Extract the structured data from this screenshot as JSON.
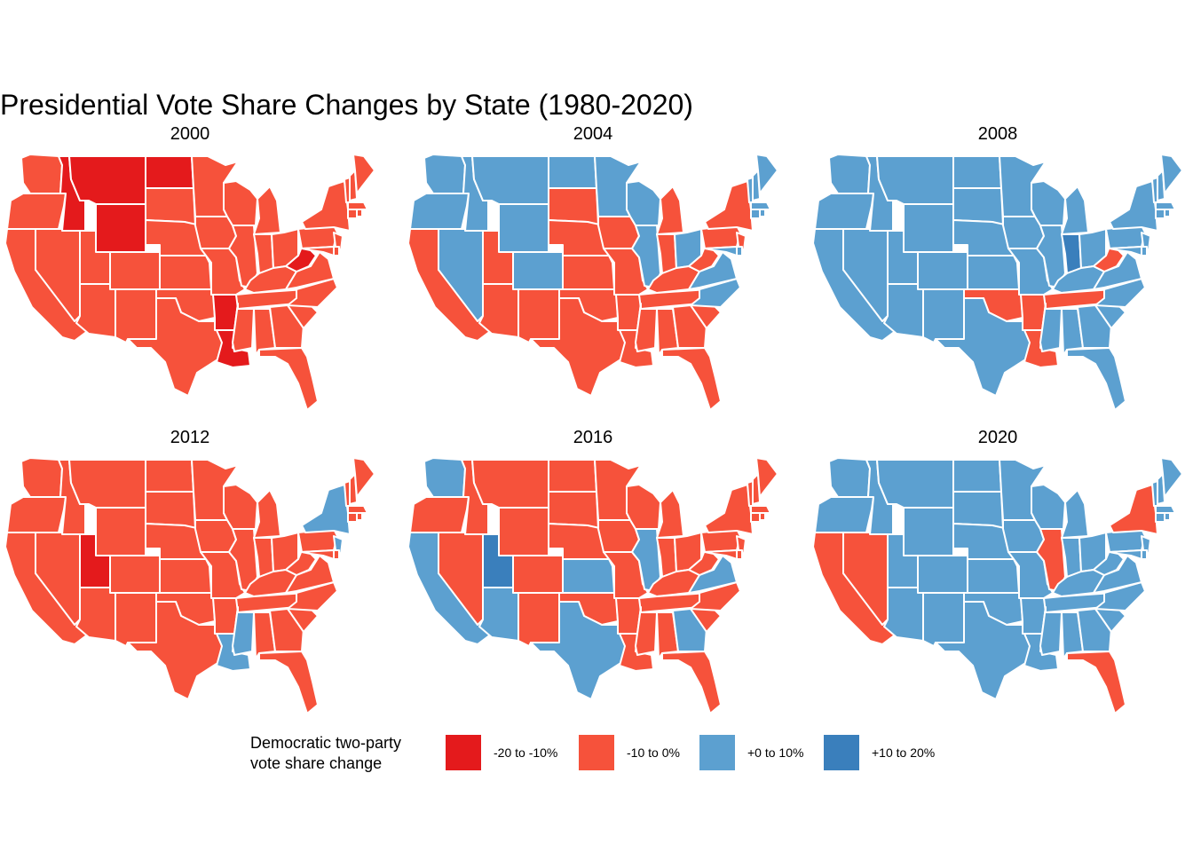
{
  "title": "Presidential Vote Share Changes by State (1980-2020)",
  "colors": {
    "cat1": "#e41a1c",
    "cat2": "#f6523b",
    "cat3": "#5ca0d0",
    "cat4": "#3a7fbc",
    "border": "#ffffff"
  },
  "legend": {
    "title_line1": "Democratic two-party",
    "title_line2": "vote share change",
    "items": [
      {
        "label": "-20 to -10%",
        "color": "#e41a1c"
      },
      {
        "label": "-10 to 0%",
        "color": "#f6523b"
      },
      {
        "label": "+0 to 10%",
        "color": "#5ca0d0"
      },
      {
        "label": "+10 to 20%",
        "color": "#3a7fbc"
      }
    ]
  },
  "panels": [
    {
      "year": "2000",
      "default": 2,
      "overrides": {
        "MT": 1,
        "ID": 1,
        "WY": 1,
        "ND": 1,
        "AR": 1,
        "LA": 1,
        "WV": 1
      }
    },
    {
      "year": "2004",
      "default": 3,
      "overrides": {
        "CA": 2,
        "UT": 2,
        "AZ": 2,
        "NM": 2,
        "TX": 2,
        "OK": 2,
        "KS": 2,
        "NE": 2,
        "SD": 2,
        "IA": 2,
        "MO": 2,
        "AR": 2,
        "LA": 2,
        "MS": 2,
        "AL": 2,
        "GA": 2,
        "FL": 2,
        "SC": 2,
        "TN": 2,
        "KY": 2,
        "IN": 2,
        "MI": 2,
        "PA": 2,
        "NY": 2,
        "NJ": 2,
        "WV": 2
      }
    },
    {
      "year": "2008",
      "default": 3,
      "overrides": {
        "OK": 2,
        "AR": 2,
        "LA": 2,
        "TN": 2,
        "WV": 2,
        "IN": 4
      }
    },
    {
      "year": "2012",
      "default": 2,
      "overrides": {
        "UT": 1,
        "MS": 3,
        "LA": 3,
        "NY": 3,
        "NJ": 3
      }
    },
    {
      "year": "2016",
      "default": 2,
      "overrides": {
        "WA": 3,
        "CA": 3,
        "AZ": 3,
        "TX": 3,
        "KS": 3,
        "IL": 3,
        "GA": 3,
        "VA": 3,
        "UT": 4
      }
    },
    {
      "year": "2020",
      "default": 3,
      "overrides": {
        "CA": 2,
        "NV": 2,
        "IL": 2,
        "FL": 2,
        "NY": 2
      }
    }
  ]
}
